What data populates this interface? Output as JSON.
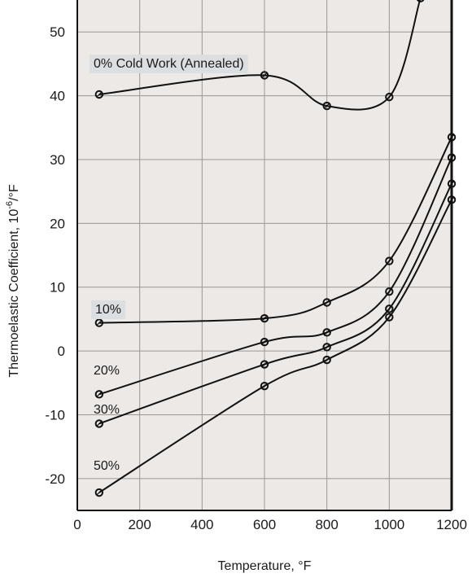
{
  "chart_data": {
    "type": "line",
    "title": "",
    "xlabel": "Temperature, °F",
    "ylabel_main": "Thermoelastic Coefficient, 10",
    "ylabel_sup": "-6",
    "ylabel_unit": "/°F",
    "xlim": [
      0,
      1200
    ],
    "ylim": [
      -25,
      55
    ],
    "xticks": [
      "0",
      "200",
      "400",
      "600",
      "800",
      "1000",
      "1200"
    ],
    "yticks": [
      "-20",
      "-10",
      "0",
      "10",
      "20",
      "30",
      "40",
      "50"
    ],
    "grid": true,
    "series": [
      {
        "name": "0% Cold Work (Annealed)",
        "x": [
          70,
          600,
          800,
          1000,
          1100
        ],
        "y": [
          40.2,
          43.2,
          38.4,
          39.8,
          55.3
        ]
      },
      {
        "name": "10%",
        "x": [
          70,
          600,
          800,
          1000,
          1200
        ],
        "y": [
          4.4,
          5.1,
          7.6,
          14.1,
          33.5
        ]
      },
      {
        "name": "20%",
        "x": [
          70,
          600,
          800,
          1000,
          1200
        ],
        "y": [
          -6.8,
          1.4,
          2.9,
          9.3,
          30.3
        ]
      },
      {
        "name": "30%",
        "x": [
          70,
          600,
          800,
          1000,
          1200
        ],
        "y": [
          -11.4,
          -2.1,
          0.6,
          6.6,
          26.2
        ]
      },
      {
        "name": "50%",
        "x": [
          70,
          600,
          800,
          1000,
          1200
        ],
        "y": [
          -22.2,
          -5.5,
          -1.4,
          5.3,
          23.7
        ]
      }
    ]
  }
}
